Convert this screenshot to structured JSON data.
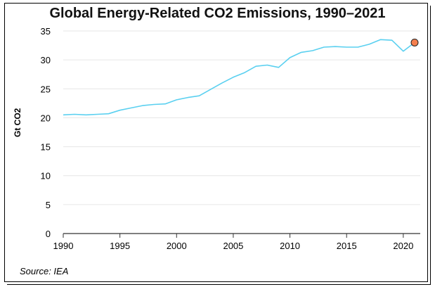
{
  "chart_data": {
    "type": "line",
    "title": "Global Energy-Related CO2 Emissions, 1990–2021",
    "xlabel": "",
    "ylabel": "Gt CO2",
    "source": "Source: IEA",
    "xlim": [
      1990,
      2021
    ],
    "ylim": [
      0,
      35
    ],
    "x_ticks": [
      1990,
      1995,
      2000,
      2005,
      2010,
      2015,
      2020
    ],
    "y_ticks": [
      0,
      5,
      10,
      15,
      20,
      25,
      30,
      35
    ],
    "grid": "horizontal",
    "line_color": "#5ad0f0",
    "marker_color": "#f5804f",
    "series": [
      {
        "x": [
          1990,
          1991,
          1992,
          1993,
          1994,
          1995,
          1996,
          1997,
          1998,
          1999,
          2000,
          2001,
          2002,
          2003,
          2004,
          2005,
          2006,
          2007,
          2008,
          2009,
          2010,
          2011,
          2012,
          2013,
          2014,
          2015,
          2016,
          2017,
          2018,
          2019,
          2020,
          2021
        ],
        "values": [
          20.5,
          20.6,
          20.5,
          20.6,
          20.7,
          21.3,
          21.7,
          22.1,
          22.3,
          22.4,
          23.1,
          23.5,
          23.8,
          24.9,
          26.0,
          27.0,
          27.8,
          28.9,
          29.1,
          28.7,
          30.4,
          31.3,
          31.6,
          32.2,
          32.3,
          32.2,
          32.2,
          32.7,
          33.5,
          33.4,
          31.5,
          33.0
        ]
      }
    ],
    "highlight_point": {
      "x": 2021,
      "y": 33.0
    }
  }
}
